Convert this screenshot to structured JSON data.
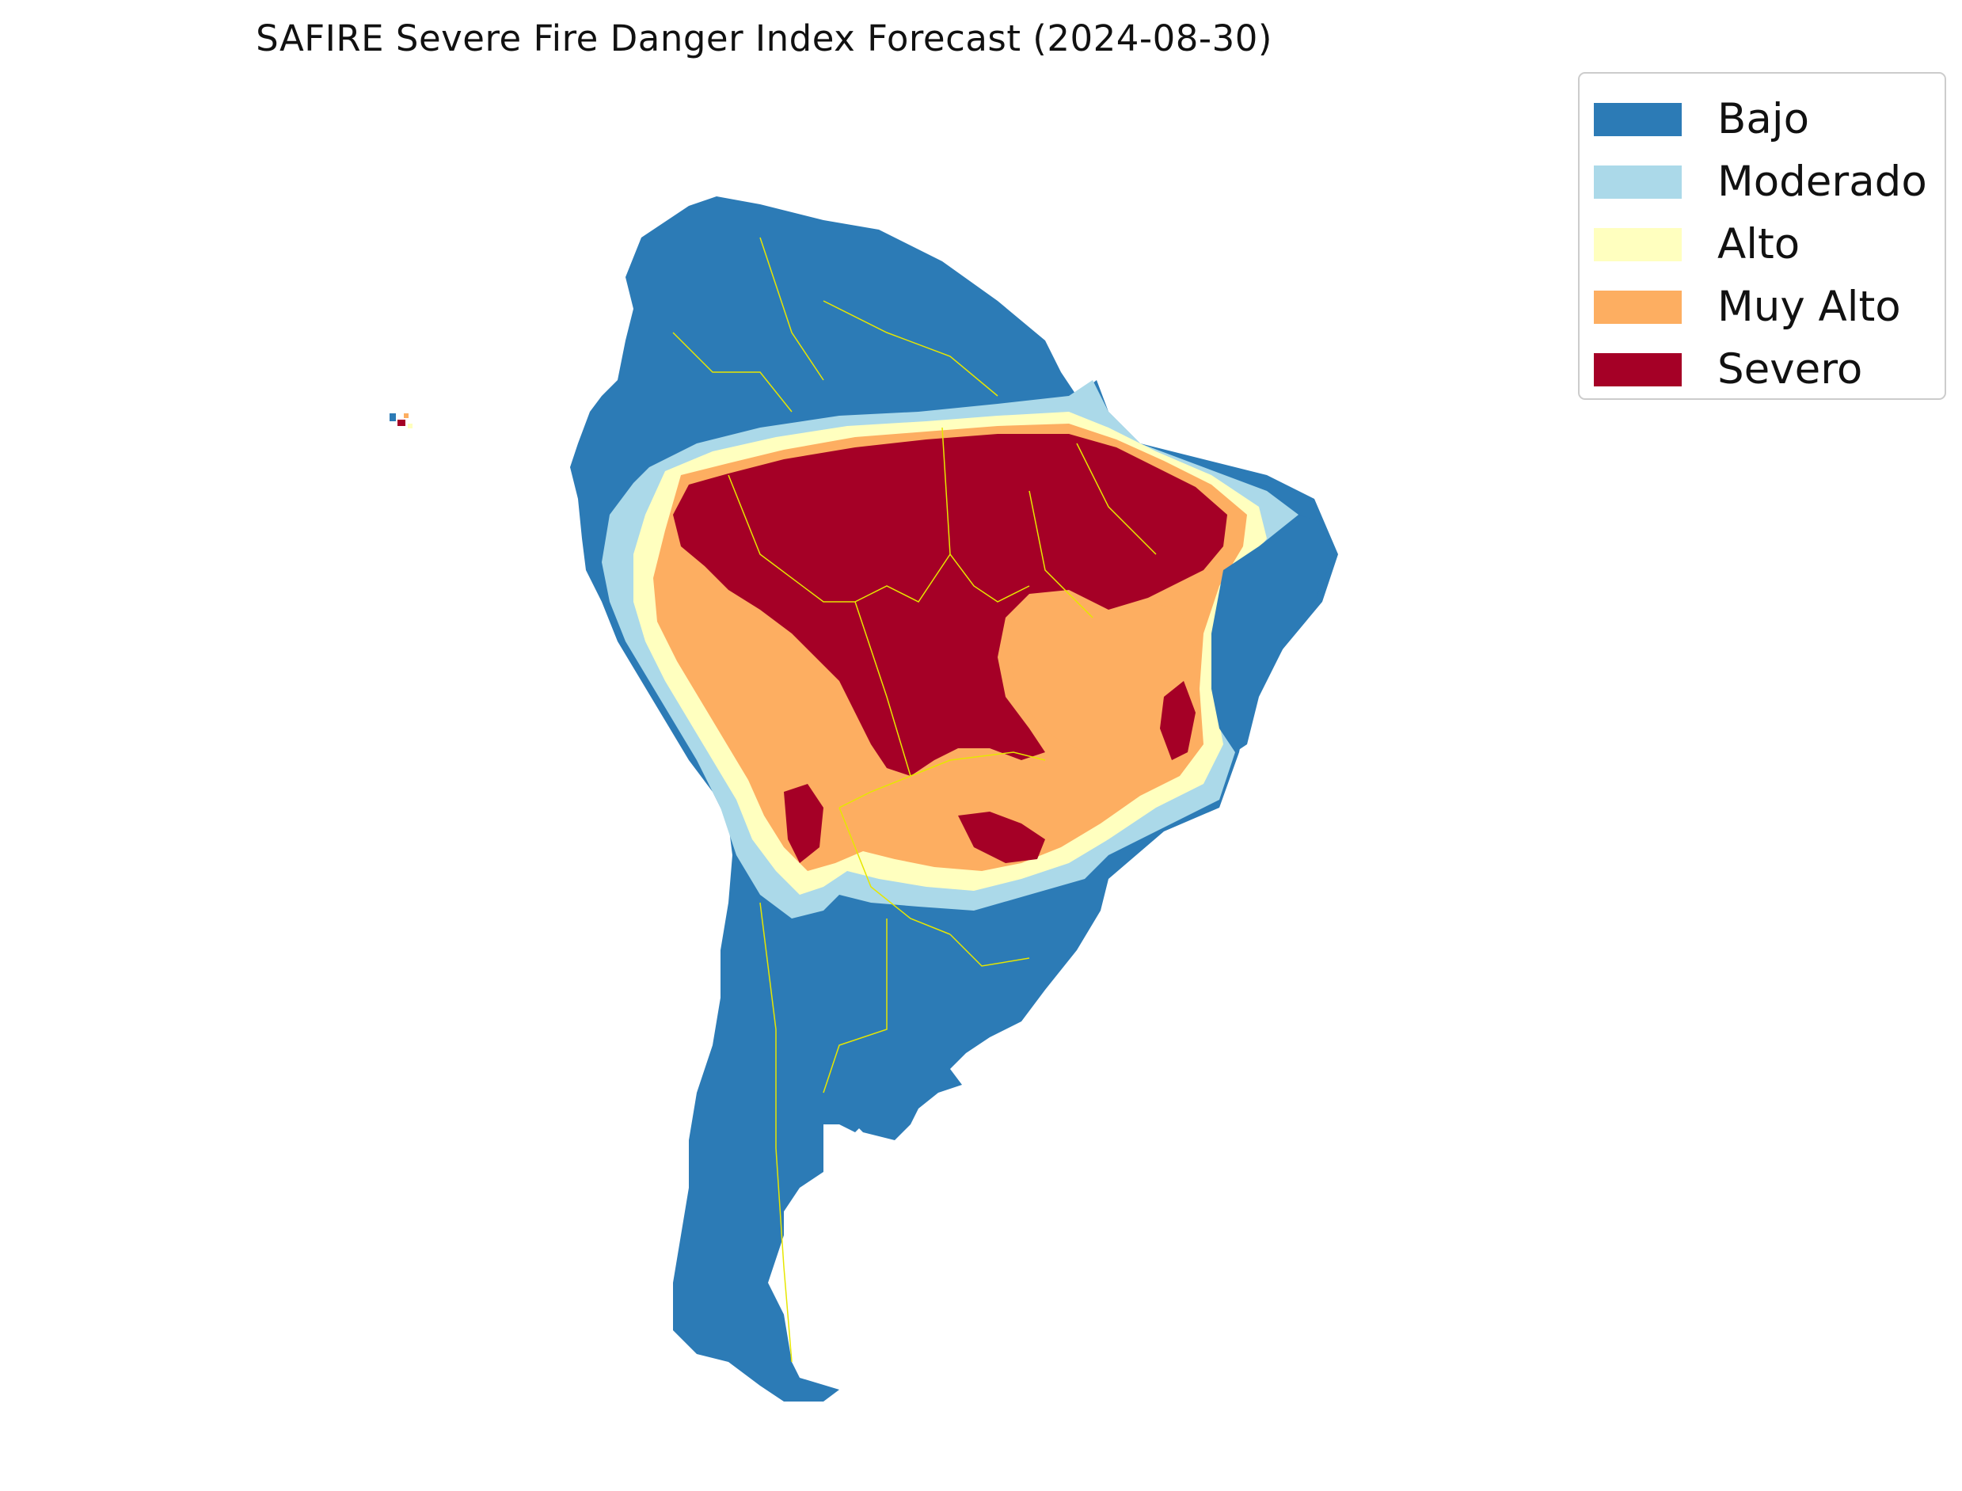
{
  "title": "SAFIRE Severe Fire Danger Index Forecast (2024-08-30)",
  "legend": {
    "items": [
      {
        "label": "Bajo",
        "color": "#2c7bb6"
      },
      {
        "label": "Moderado",
        "color": "#abd9e9"
      },
      {
        "label": "Alto",
        "color": "#ffffbf"
      },
      {
        "label": "Muy Alto",
        "color": "#fdae61"
      },
      {
        "label": "Severo",
        "color": "#a50026"
      }
    ]
  },
  "map": {
    "region": "South America",
    "border_color": "#e6e600"
  }
}
